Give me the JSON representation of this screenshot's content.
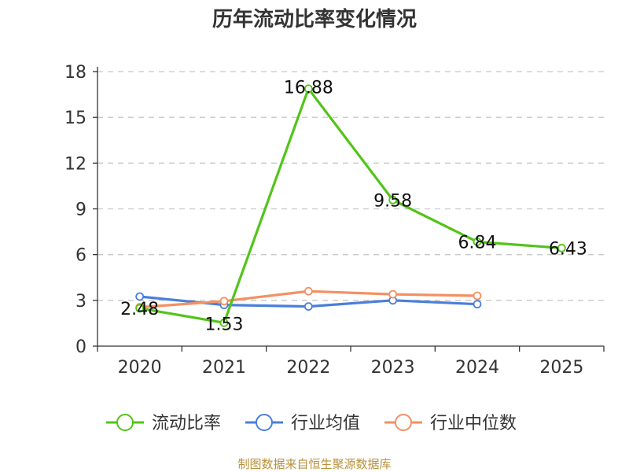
{
  "chart_data": {
    "type": "line",
    "title": "历年流动比率变化情况",
    "xlabel": "",
    "ylabel": "",
    "categories": [
      "2020",
      "2021",
      "2022",
      "2023",
      "2024",
      "2025"
    ],
    "ylim": [
      0,
      18
    ],
    "yticks": [
      0,
      3,
      6,
      9,
      12,
      15,
      18
    ],
    "grid": true,
    "legend_position": "bottom",
    "series": [
      {
        "name": "流动比率",
        "color": "#52c41a",
        "values": [
          2.48,
          1.53,
          16.88,
          9.58,
          6.84,
          6.43
        ],
        "labels": [
          "2.48",
          "1.53",
          "16.88",
          "9.58",
          "6.84",
          "6.43"
        ]
      },
      {
        "name": "行业均值",
        "color": "#4a7fdb",
        "values": [
          3.25,
          2.7,
          2.6,
          3.0,
          2.75,
          null
        ]
      },
      {
        "name": "行业中位数",
        "color": "#f39062",
        "values": [
          2.55,
          2.95,
          3.6,
          3.4,
          3.3,
          null
        ]
      }
    ],
    "source": "制图数据来自恒生聚源数据库"
  }
}
